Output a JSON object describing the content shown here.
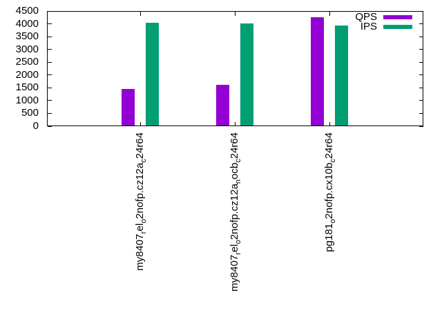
{
  "figure": {
    "background": "#ffffff",
    "title": ""
  },
  "chart_data": {
    "type": "bar",
    "title": "",
    "xlabel": "",
    "ylabel": "",
    "ylim": [
      0,
      4500
    ],
    "yticks": [
      0,
      500,
      1000,
      1500,
      2000,
      2500,
      3000,
      3500,
      4000,
      4500
    ],
    "grid": false,
    "legend_position": "top-right-inside",
    "categories": [
      {
        "segments": [
          {
            "text": "my8407"
          },
          {
            "text": "r",
            "subscript": true
          },
          {
            "text": "el"
          },
          {
            "text": "o",
            "subscript": true
          },
          {
            "text": "2nofp.cz12a"
          },
          {
            "text": "c",
            "subscript": true
          },
          {
            "text": "24r64"
          }
        ]
      },
      {
        "segments": [
          {
            "text": "my8407"
          },
          {
            "text": "r",
            "subscript": true
          },
          {
            "text": "el"
          },
          {
            "text": "o",
            "subscript": true
          },
          {
            "text": "2nofp.cz12a"
          },
          {
            "text": "n",
            "subscript": true
          },
          {
            "text": "ocb"
          },
          {
            "text": "c",
            "subscript": true
          },
          {
            "text": "24r64"
          }
        ]
      },
      {
        "segments": [
          {
            "text": "pg181"
          },
          {
            "text": "o",
            "subscript": true
          },
          {
            "text": "2nofp.cx10b"
          },
          {
            "text": "c",
            "subscript": true
          },
          {
            "text": "24r64"
          }
        ]
      }
    ],
    "series": [
      {
        "name": "QPS",
        "color": "#9400d3",
        "values": [
          1460,
          1620,
          4250
        ]
      },
      {
        "name": "IPS",
        "color": "#009e73",
        "values": [
          4040,
          4020,
          3940
        ]
      }
    ]
  }
}
